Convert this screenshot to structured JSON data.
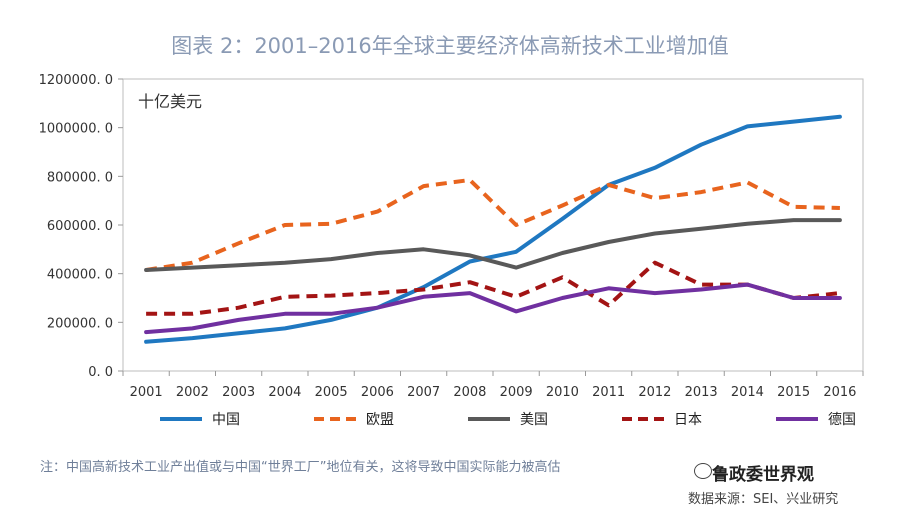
{
  "title": "图表 2：2001–2016年全球主要经济体高新技术工业增加值",
  "note": "注：中国高新技术工业产出值或与中国“世界工厂”地位有关，这将导致中国实际能力被高估",
  "watermark": "鲁政委世界观",
  "source": "数据来源：SEI、兴业研究",
  "chart_data": {
    "type": "line",
    "unit_label": "十亿美元",
    "categories": [
      "2001",
      "2002",
      "2003",
      "2004",
      "2005",
      "2006",
      "2007",
      "2008",
      "2009",
      "2010",
      "2011",
      "2012",
      "2013",
      "2014",
      "2015",
      "2016"
    ],
    "ylim": [
      0,
      1200000
    ],
    "yticks": [
      0,
      200000,
      400000,
      600000,
      800000,
      1000000,
      1200000
    ],
    "ytick_labels": [
      "0. 0",
      "200000. 0",
      "400000. 0",
      "600000. 0",
      "800000. 0",
      "1000000. 0",
      "1200000. 0"
    ],
    "series": [
      {
        "name": "中国",
        "color": "#1f78c1",
        "dash": "solid",
        "values": [
          120000,
          135000,
          155000,
          175000,
          210000,
          260000,
          345000,
          450000,
          490000,
          625000,
          765000,
          835000,
          930000,
          1005000,
          1025000,
          1045000
        ]
      },
      {
        "name": "欧盟",
        "color": "#e8641e",
        "dash": "dashed",
        "values": [
          415000,
          445000,
          525000,
          600000,
          605000,
          655000,
          760000,
          785000,
          600000,
          680000,
          765000,
          710000,
          735000,
          775000,
          675000,
          670000
        ]
      },
      {
        "name": "美国",
        "color": "#595959",
        "dash": "solid",
        "values": [
          415000,
          425000,
          435000,
          445000,
          460000,
          485000,
          500000,
          475000,
          425000,
          485000,
          530000,
          565000,
          585000,
          605000,
          620000,
          620000
        ]
      },
      {
        "name": "日本",
        "color": "#a31414",
        "dash": "dashed",
        "values": [
          235000,
          235000,
          260000,
          305000,
          310000,
          320000,
          335000,
          365000,
          305000,
          385000,
          270000,
          445000,
          355000,
          355000,
          300000,
          320000
        ]
      },
      {
        "name": "德国",
        "color": "#7030a0",
        "dash": "solid",
        "values": [
          160000,
          175000,
          210000,
          235000,
          235000,
          260000,
          305000,
          320000,
          245000,
          300000,
          340000,
          320000,
          335000,
          355000,
          300000,
          300000
        ]
      }
    ]
  }
}
